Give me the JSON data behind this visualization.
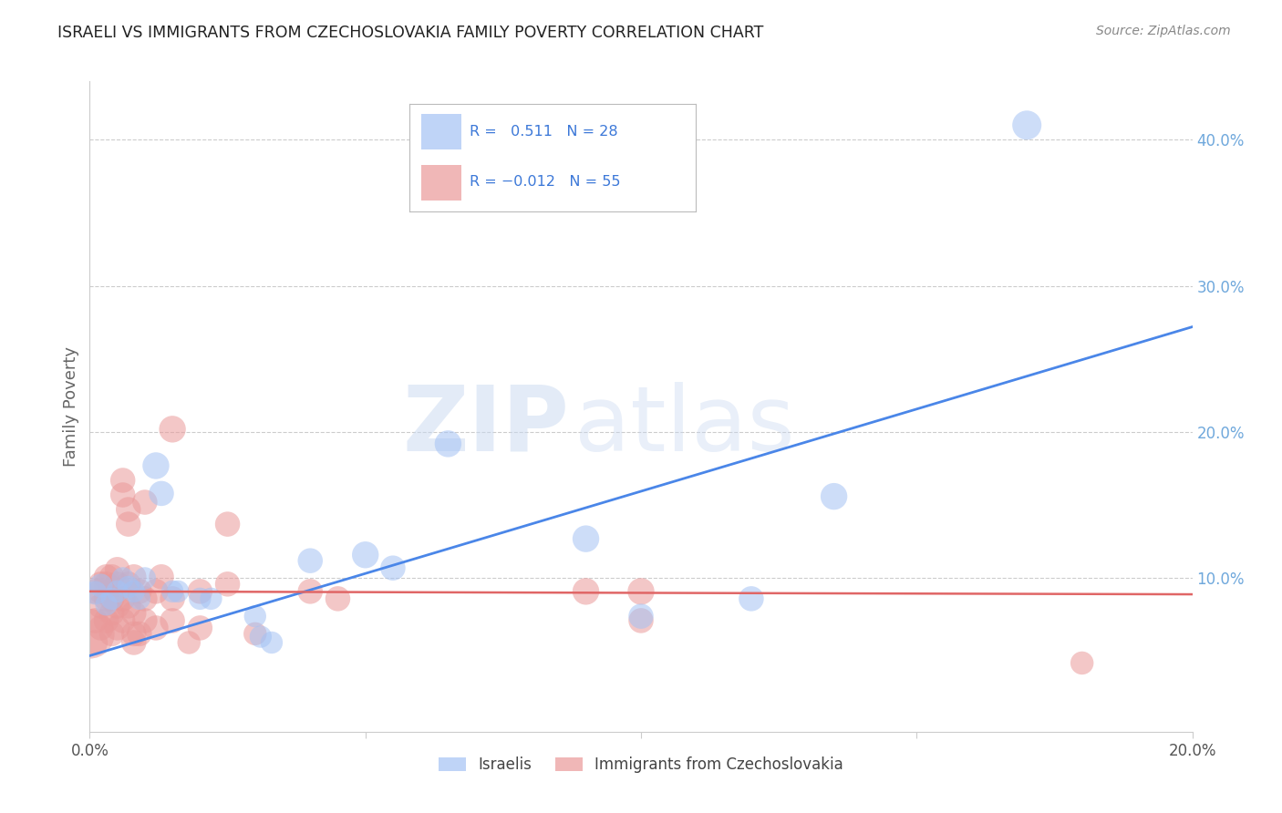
{
  "title": "ISRAELI VS IMMIGRANTS FROM CZECHOSLOVAKIA FAMILY POVERTY CORRELATION CHART",
  "source": "Source: ZipAtlas.com",
  "ylabel": "Family Poverty",
  "watermark_zip": "ZIP",
  "watermark_atlas": "atlas",
  "xlim": [
    0.0,
    0.2
  ],
  "ylim": [
    -0.005,
    0.44
  ],
  "xticks": [
    0.0,
    0.05,
    0.1,
    0.15,
    0.2
  ],
  "yticks": [
    0.1,
    0.2,
    0.3,
    0.4
  ],
  "ytick_labels": [
    "10.0%",
    "20.0%",
    "30.0%",
    "40.0%"
  ],
  "xtick_labels": [
    "0.0%",
    "",
    "",
    "",
    "20.0%"
  ],
  "blue_label": "Israelis",
  "pink_label": "Immigrants from Czechoslovakia",
  "blue_color": "#a4c2f4",
  "pink_color": "#ea9999",
  "blue_line_color": "#4a86e8",
  "pink_line_color": "#e06666",
  "grid_color": "#cccccc",
  "title_color": "#222222",
  "axis_label_color": "#666666",
  "right_tick_color": "#6fa8dc",
  "blue_scatter": [
    [
      0.001,
      0.09
    ],
    [
      0.002,
      0.095
    ],
    [
      0.003,
      0.082
    ],
    [
      0.004,
      0.086
    ],
    [
      0.005,
      0.091
    ],
    [
      0.006,
      0.1
    ],
    [
      0.007,
      0.094
    ],
    [
      0.008,
      0.091
    ],
    [
      0.009,
      0.086
    ],
    [
      0.01,
      0.1
    ],
    [
      0.012,
      0.177
    ],
    [
      0.013,
      0.158
    ],
    [
      0.015,
      0.091
    ],
    [
      0.016,
      0.091
    ],
    [
      0.02,
      0.086
    ],
    [
      0.022,
      0.086
    ],
    [
      0.03,
      0.074
    ],
    [
      0.031,
      0.06
    ],
    [
      0.033,
      0.056
    ],
    [
      0.04,
      0.112
    ],
    [
      0.05,
      0.116
    ],
    [
      0.055,
      0.107
    ],
    [
      0.065,
      0.192
    ],
    [
      0.09,
      0.127
    ],
    [
      0.1,
      0.074
    ],
    [
      0.12,
      0.086
    ],
    [
      0.135,
      0.156
    ],
    [
      0.17,
      0.41
    ]
  ],
  "pink_scatter": [
    [
      0.0,
      0.062
    ],
    [
      0.001,
      0.056
    ],
    [
      0.001,
      0.071
    ],
    [
      0.001,
      0.091
    ],
    [
      0.002,
      0.066
    ],
    [
      0.002,
      0.081
    ],
    [
      0.002,
      0.091
    ],
    [
      0.002,
      0.096
    ],
    [
      0.003,
      0.071
    ],
    [
      0.003,
      0.086
    ],
    [
      0.003,
      0.101
    ],
    [
      0.003,
      0.096
    ],
    [
      0.004,
      0.062
    ],
    [
      0.004,
      0.076
    ],
    [
      0.004,
      0.086
    ],
    [
      0.004,
      0.101
    ],
    [
      0.005,
      0.066
    ],
    [
      0.005,
      0.081
    ],
    [
      0.005,
      0.096
    ],
    [
      0.005,
      0.106
    ],
    [
      0.006,
      0.071
    ],
    [
      0.006,
      0.086
    ],
    [
      0.006,
      0.167
    ],
    [
      0.006,
      0.157
    ],
    [
      0.007,
      0.081
    ],
    [
      0.007,
      0.147
    ],
    [
      0.007,
      0.096
    ],
    [
      0.007,
      0.137
    ],
    [
      0.008,
      0.076
    ],
    [
      0.008,
      0.101
    ],
    [
      0.008,
      0.062
    ],
    [
      0.008,
      0.056
    ],
    [
      0.009,
      0.091
    ],
    [
      0.009,
      0.062
    ],
    [
      0.01,
      0.071
    ],
    [
      0.01,
      0.086
    ],
    [
      0.01,
      0.152
    ],
    [
      0.012,
      0.091
    ],
    [
      0.012,
      0.066
    ],
    [
      0.013,
      0.101
    ],
    [
      0.015,
      0.071
    ],
    [
      0.015,
      0.086
    ],
    [
      0.015,
      0.202
    ],
    [
      0.018,
      0.056
    ],
    [
      0.02,
      0.091
    ],
    [
      0.02,
      0.066
    ],
    [
      0.025,
      0.137
    ],
    [
      0.025,
      0.096
    ],
    [
      0.03,
      0.062
    ],
    [
      0.04,
      0.091
    ],
    [
      0.045,
      0.086
    ],
    [
      0.09,
      0.091
    ],
    [
      0.1,
      0.091
    ],
    [
      0.1,
      0.071
    ],
    [
      0.18,
      0.042
    ]
  ],
  "blue_bubble_sizes": [
    25,
    25,
    22,
    22,
    22,
    22,
    22,
    22,
    22,
    22,
    32,
    28,
    22,
    22,
    22,
    22,
    22,
    22,
    22,
    28,
    32,
    28,
    32,
    32,
    28,
    28,
    32,
    38
  ],
  "pink_bubble_sizes": [
    110,
    28,
    28,
    28,
    28,
    28,
    28,
    28,
    28,
    28,
    28,
    28,
    28,
    28,
    28,
    28,
    28,
    28,
    28,
    28,
    28,
    28,
    28,
    28,
    28,
    28,
    28,
    28,
    28,
    28,
    28,
    28,
    28,
    28,
    28,
    28,
    28,
    28,
    28,
    28,
    28,
    28,
    32,
    24,
    28,
    28,
    28,
    28,
    24,
    28,
    28,
    32,
    32,
    28,
    24
  ],
  "blue_line": [
    [
      0.0,
      0.047
    ],
    [
      0.2,
      0.272
    ]
  ],
  "pink_line": [
    [
      0.0,
      0.091
    ],
    [
      0.2,
      0.089
    ]
  ],
  "legend_text_color": "#3c78d8",
  "legend_neg_color": "#cc0000"
}
